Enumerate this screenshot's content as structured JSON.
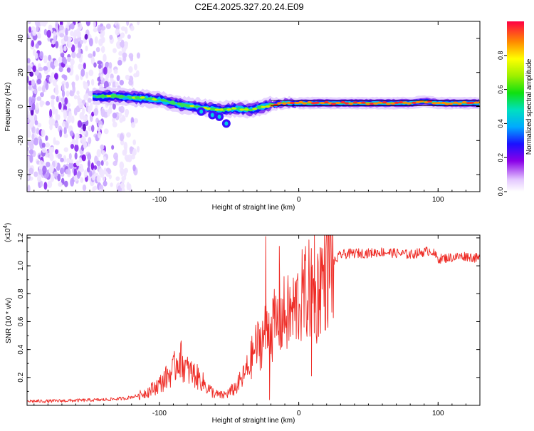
{
  "title": "C2E4.2025.327.20.24.E09",
  "chart_data": [
    {
      "type": "heatmap",
      "title": "C2E4.2025.327.20.24.E09",
      "xlabel": "Height of straight line (km)",
      "ylabel": "Frequency (Hz)",
      "xlim": [
        -195,
        130
      ],
      "ylim": [
        -50,
        50
      ],
      "x_ticks": [
        -100,
        0,
        100
      ],
      "x_tick_labels": [
        "-100",
        "0",
        "100"
      ],
      "y_ticks": [
        -40,
        -20,
        0,
        20,
        40
      ],
      "y_tick_labels": [
        "-40",
        "-20",
        "0",
        "20",
        "40"
      ],
      "ridge": {
        "description_points_x": [
          -145,
          -130,
          -115,
          -100,
          -85,
          -75,
          -65,
          -55,
          -45,
          -35,
          -25,
          -20,
          -10,
          0,
          20,
          40,
          60,
          80,
          90,
          100,
          130
        ],
        "frequency_hz": [
          6,
          6,
          5,
          4,
          1,
          0,
          -1,
          -2,
          -1,
          -2,
          0,
          1,
          2,
          2,
          2,
          2,
          2,
          2,
          3,
          2,
          2
        ]
      },
      "noise_region_x": [
        -195,
        -115
      ],
      "colorbar": {
        "label": "Normalized spectral amplitude",
        "range": [
          0,
          1
        ],
        "ticks": [
          0.0,
          0.2,
          0.4,
          0.6,
          0.8
        ],
        "tick_labels": [
          "0.0",
          "0.2",
          "0.4",
          "0.6",
          "0.8"
        ]
      }
    },
    {
      "type": "line",
      "xlabel": "Height of straight line (km)",
      "ylabel": "SNR (10 * v/v)",
      "y_multiplier": "(x10",
      "y_multiplier_exp": "4",
      "y_multiplier_close": ")",
      "xlim": [
        -195,
        130
      ],
      "ylim": [
        0,
        12200
      ],
      "x_ticks": [
        -100,
        0,
        100
      ],
      "x_tick_labels": [
        "-100",
        "0",
        "100"
      ],
      "y_ticks": [
        2000,
        4000,
        6000,
        8000,
        10000,
        12000
      ],
      "y_tick_labels": [
        "0.2",
        "0.4",
        "0.6",
        "0.8",
        "1.0",
        "1.2"
      ],
      "line_color": "#ee2a24",
      "series": [
        {
          "name": "SNR",
          "x": [
            -195,
            -180,
            -160,
            -140,
            -125,
            -115,
            -108,
            -100,
            -95,
            -90,
            -86,
            -83,
            -80,
            -75,
            -70,
            -65,
            -60,
            -55,
            -50,
            -45,
            -40,
            -35,
            -32,
            -28,
            -25,
            -23,
            -20,
            -15,
            -10,
            -5,
            0,
            5,
            10,
            12,
            15,
            20,
            25,
            30,
            40,
            50,
            60,
            70,
            80,
            90,
            95,
            100,
            110,
            120,
            130
          ],
          "y": [
            300,
            300,
            350,
            400,
            500,
            700,
            1000,
            1500,
            2000,
            2500,
            3500,
            3000,
            2500,
            2200,
            1800,
            1200,
            800,
            700,
            900,
            1300,
            2000,
            3000,
            4000,
            4500,
            5000,
            5500,
            5500,
            6000,
            6500,
            6500,
            7500,
            8000,
            8500,
            7000,
            9000,
            9500,
            10200,
            10800,
            10900,
            10900,
            11000,
            10900,
            10800,
            11000,
            11100,
            10500,
            10600,
            10700,
            10500
          ]
        }
      ],
      "spikes": [
        {
          "x": -24,
          "y": 12100
        },
        {
          "x": -21,
          "y": 400
        },
        {
          "x": -14,
          "y": 11400
        },
        {
          "x": 11,
          "y": 12200
        },
        {
          "x": 9,
          "y": 2100
        }
      ]
    }
  ]
}
